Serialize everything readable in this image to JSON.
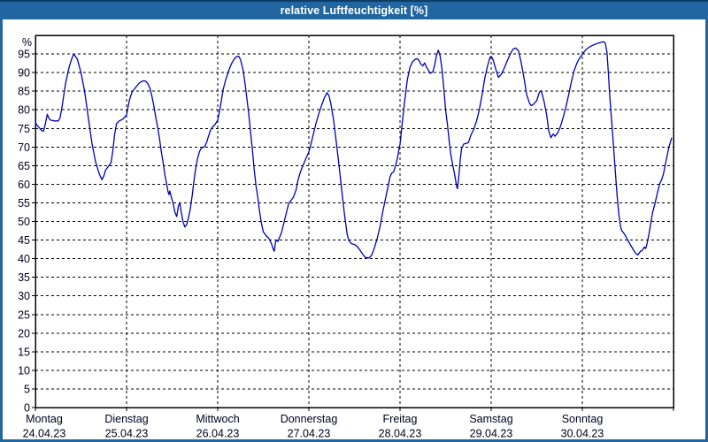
{
  "window": {
    "title": "relative Luftfeuchtigkeit [%]"
  },
  "colors": {
    "titlebar_bg": "#2166a0",
    "titlebar_top_edge": "#0e3c64",
    "titlebar_text": "#ffffff",
    "window_border": "#2166a0",
    "content_bg": "#ffffff",
    "plot_frame": "#000000",
    "gridline": "#000000",
    "axis_text": "#00001e",
    "series_line": "#0000b4"
  },
  "chart_data": {
    "type": "line",
    "title": "relative Luftfeuchtigkeit [%]",
    "ylabel": "%",
    "xlabel": "",
    "ylim": [
      0,
      100
    ],
    "grid": true,
    "legend_position": "none",
    "yticks": [
      0,
      5,
      10,
      15,
      20,
      25,
      30,
      35,
      40,
      45,
      50,
      55,
      60,
      65,
      70,
      75,
      80,
      85,
      90,
      95
    ],
    "x_days": [
      {
        "name": "Montag",
        "date": "24.04.23"
      },
      {
        "name": "Dienstag",
        "date": "25.04.23"
      },
      {
        "name": "Mittwoch",
        "date": "26.04.23"
      },
      {
        "name": "Donnerstag",
        "date": "27.04.23"
      },
      {
        "name": "Freitag",
        "date": "28.04.23"
      },
      {
        "name": "Samstag",
        "date": "29.04.23"
      },
      {
        "name": "Sonntag",
        "date": "30.04.23"
      }
    ],
    "x_unit": "days_from_monday_midnight",
    "series": [
      {
        "name": "relative Luftfeuchtigkeit [%]",
        "color": "#0000b4",
        "points": [
          [
            0.0,
            76.5
          ],
          [
            0.02,
            75.8
          ],
          [
            0.05,
            75.0
          ],
          [
            0.07,
            74.4
          ],
          [
            0.09,
            74.3
          ],
          [
            0.11,
            76.3
          ],
          [
            0.13,
            78.8
          ],
          [
            0.15,
            77.6
          ],
          [
            0.17,
            77.2
          ],
          [
            0.21,
            77.0
          ],
          [
            0.25,
            77.0
          ],
          [
            0.27,
            77.8
          ],
          [
            0.29,
            80.5
          ],
          [
            0.33,
            87.0
          ],
          [
            0.37,
            91.5
          ],
          [
            0.4,
            93.8
          ],
          [
            0.42,
            95.0
          ],
          [
            0.46,
            93.6
          ],
          [
            0.5,
            90.0
          ],
          [
            0.54,
            85.0
          ],
          [
            0.58,
            78.0
          ],
          [
            0.62,
            71.0
          ],
          [
            0.66,
            66.0
          ],
          [
            0.7,
            62.8
          ],
          [
            0.73,
            61.2
          ],
          [
            0.75,
            62.2
          ],
          [
            0.77,
            63.8
          ],
          [
            0.8,
            64.8
          ],
          [
            0.83,
            65.8
          ],
          [
            0.85,
            69.0
          ],
          [
            0.87,
            73.5
          ],
          [
            0.89,
            76.3
          ],
          [
            0.92,
            77.0
          ],
          [
            0.96,
            77.5
          ],
          [
            1.0,
            78.6
          ],
          [
            1.03,
            82.5
          ],
          [
            1.06,
            84.8
          ],
          [
            1.1,
            86.0
          ],
          [
            1.14,
            87.2
          ],
          [
            1.18,
            87.8
          ],
          [
            1.21,
            87.7
          ],
          [
            1.24,
            86.8
          ],
          [
            1.26,
            85.5
          ],
          [
            1.28,
            83.5
          ],
          [
            1.3,
            81.0
          ],
          [
            1.32,
            78.0
          ],
          [
            1.34,
            75.5
          ],
          [
            1.36,
            72.5
          ],
          [
            1.38,
            69.0
          ],
          [
            1.4,
            66.0
          ],
          [
            1.42,
            62.5
          ],
          [
            1.44,
            60.0
          ],
          [
            1.455,
            58.0
          ],
          [
            1.465,
            57.2
          ],
          [
            1.475,
            58.2
          ],
          [
            1.49,
            56.6
          ],
          [
            1.51,
            55.0
          ],
          [
            1.53,
            52.5
          ],
          [
            1.55,
            51.3
          ],
          [
            1.57,
            54.3
          ],
          [
            1.585,
            54.9
          ],
          [
            1.6,
            52.5
          ],
          [
            1.62,
            49.8
          ],
          [
            1.64,
            48.5
          ],
          [
            1.66,
            49.2
          ],
          [
            1.68,
            51.0
          ],
          [
            1.7,
            53.5
          ],
          [
            1.72,
            57.0
          ],
          [
            1.74,
            61.0
          ],
          [
            1.76,
            64.5
          ],
          [
            1.78,
            67.0
          ],
          [
            1.8,
            68.8
          ],
          [
            1.82,
            69.7
          ],
          [
            1.86,
            70.2
          ],
          [
            1.88,
            71.3
          ],
          [
            1.9,
            73.0
          ],
          [
            1.92,
            74.5
          ],
          [
            1.94,
            75.3
          ],
          [
            1.97,
            76.0
          ],
          [
            2.0,
            77.2
          ],
          [
            2.03,
            81.0
          ],
          [
            2.06,
            85.5
          ],
          [
            2.09,
            88.3
          ],
          [
            2.12,
            90.5
          ],
          [
            2.15,
            92.3
          ],
          [
            2.18,
            93.6
          ],
          [
            2.21,
            94.3
          ],
          [
            2.23,
            94.4
          ],
          [
            2.25,
            93.5
          ],
          [
            2.28,
            90.5
          ],
          [
            2.3,
            87.0
          ],
          [
            2.32,
            83.0
          ],
          [
            2.34,
            79.0
          ],
          [
            2.36,
            74.0
          ],
          [
            2.38,
            69.5
          ],
          [
            2.4,
            64.0
          ],
          [
            2.42,
            59.5
          ],
          [
            2.44,
            56.5
          ],
          [
            2.46,
            52.5
          ],
          [
            2.48,
            49.5
          ],
          [
            2.5,
            47.2
          ],
          [
            2.53,
            46.2
          ],
          [
            2.56,
            45.5
          ],
          [
            2.59,
            44.0
          ],
          [
            2.61,
            42.5
          ],
          [
            2.62,
            42.0
          ],
          [
            2.635,
            44.6
          ],
          [
            2.65,
            45.0
          ],
          [
            2.66,
            44.6
          ],
          [
            2.67,
            45.2
          ],
          [
            2.7,
            47.0
          ],
          [
            2.73,
            50.0
          ],
          [
            2.76,
            53.0
          ],
          [
            2.78,
            54.9
          ],
          [
            2.8,
            55.5
          ],
          [
            2.83,
            56.5
          ],
          [
            2.86,
            58.5
          ],
          [
            2.88,
            61.0
          ],
          [
            2.91,
            63.5
          ],
          [
            2.94,
            65.3
          ],
          [
            2.97,
            67.0
          ],
          [
            3.0,
            68.7
          ],
          [
            3.02,
            70.5
          ],
          [
            3.05,
            73.5
          ],
          [
            3.08,
            76.5
          ],
          [
            3.11,
            79.0
          ],
          [
            3.14,
            81.2
          ],
          [
            3.17,
            83.2
          ],
          [
            3.2,
            84.6
          ],
          [
            3.22,
            83.8
          ],
          [
            3.24,
            81.8
          ],
          [
            3.27,
            77.5
          ],
          [
            3.3,
            71.5
          ],
          [
            3.33,
            65.2
          ],
          [
            3.36,
            58.5
          ],
          [
            3.39,
            52.0
          ],
          [
            3.42,
            46.5
          ],
          [
            3.44,
            44.8
          ],
          [
            3.47,
            44.0
          ],
          [
            3.5,
            43.8
          ],
          [
            3.53,
            43.3
          ],
          [
            3.56,
            42.3
          ],
          [
            3.59,
            41.2
          ],
          [
            3.62,
            40.3
          ],
          [
            3.66,
            40.2
          ],
          [
            3.69,
            41.0
          ],
          [
            3.72,
            43.0
          ],
          [
            3.75,
            45.5
          ],
          [
            3.78,
            48.5
          ],
          [
            3.81,
            52.5
          ],
          [
            3.84,
            56.0
          ],
          [
            3.87,
            59.5
          ],
          [
            3.89,
            62.0
          ],
          [
            3.91,
            63.0
          ],
          [
            3.93,
            63.3
          ],
          [
            3.95,
            65.0
          ],
          [
            3.97,
            66.8
          ],
          [
            3.985,
            69.0
          ],
          [
            4.0,
            70.7
          ],
          [
            4.02,
            75.5
          ],
          [
            4.05,
            82.0
          ],
          [
            4.08,
            88.0
          ],
          [
            4.11,
            91.5
          ],
          [
            4.14,
            93.0
          ],
          [
            4.17,
            93.6
          ],
          [
            4.19,
            93.7
          ],
          [
            4.21,
            93.2
          ],
          [
            4.23,
            92.2
          ],
          [
            4.25,
            91.8
          ],
          [
            4.27,
            92.6
          ],
          [
            4.29,
            91.5
          ],
          [
            4.31,
            90.7
          ],
          [
            4.33,
            89.8
          ],
          [
            4.36,
            90.2
          ],
          [
            4.38,
            92.0
          ],
          [
            4.4,
            94.6
          ],
          [
            4.42,
            96.0
          ],
          [
            4.44,
            94.5
          ],
          [
            4.46,
            91.0
          ],
          [
            4.48,
            86.0
          ],
          [
            4.5,
            80.0
          ],
          [
            4.52,
            76.0
          ],
          [
            4.54,
            71.5
          ],
          [
            4.56,
            67.5
          ],
          [
            4.58,
            65.0
          ],
          [
            4.6,
            62.5
          ],
          [
            4.62,
            59.5
          ],
          [
            4.63,
            58.8
          ],
          [
            4.645,
            62.0
          ],
          [
            4.66,
            66.5
          ],
          [
            4.675,
            69.5
          ],
          [
            4.7,
            70.8
          ],
          [
            4.73,
            71.0
          ],
          [
            4.75,
            71.2
          ],
          [
            4.78,
            73.3
          ],
          [
            4.81,
            74.8
          ],
          [
            4.84,
            77.0
          ],
          [
            4.87,
            80.0
          ],
          [
            4.9,
            84.0
          ],
          [
            4.93,
            88.5
          ],
          [
            4.96,
            91.8
          ],
          [
            4.985,
            94.0
          ],
          [
            5.0,
            94.4
          ],
          [
            5.02,
            93.5
          ],
          [
            5.05,
            91.0
          ],
          [
            5.08,
            88.7
          ],
          [
            5.11,
            89.5
          ],
          [
            5.14,
            91.0
          ],
          [
            5.17,
            92.8
          ],
          [
            5.21,
            95.0
          ],
          [
            5.24,
            96.3
          ],
          [
            5.27,
            96.6
          ],
          [
            5.3,
            95.8
          ],
          [
            5.33,
            92.6
          ],
          [
            5.36,
            88.5
          ],
          [
            5.39,
            84.0
          ],
          [
            5.42,
            81.8
          ],
          [
            5.44,
            81.1
          ],
          [
            5.47,
            81.6
          ],
          [
            5.5,
            82.5
          ],
          [
            5.53,
            84.8
          ],
          [
            5.55,
            85.1
          ],
          [
            5.58,
            82.3
          ],
          [
            5.61,
            78.5
          ],
          [
            5.63,
            74.5
          ],
          [
            5.655,
            72.5
          ],
          [
            5.68,
            73.5
          ],
          [
            5.7,
            72.9
          ],
          [
            5.73,
            73.8
          ],
          [
            5.76,
            75.5
          ],
          [
            5.79,
            78.0
          ],
          [
            5.82,
            80.8
          ],
          [
            5.85,
            84.0
          ],
          [
            5.88,
            87.5
          ],
          [
            5.91,
            90.5
          ],
          [
            5.94,
            92.5
          ],
          [
            5.97,
            93.9
          ],
          [
            6.0,
            94.9
          ],
          [
            6.04,
            96.2
          ],
          [
            6.08,
            96.9
          ],
          [
            6.12,
            97.4
          ],
          [
            6.16,
            97.8
          ],
          [
            6.2,
            98.1
          ],
          [
            6.23,
            98.3
          ],
          [
            6.25,
            98.0
          ],
          [
            6.27,
            95.5
          ],
          [
            6.285,
            90.0
          ],
          [
            6.3,
            84.0
          ],
          [
            6.32,
            77.5
          ],
          [
            6.34,
            71.0
          ],
          [
            6.36,
            64.0
          ],
          [
            6.38,
            57.5
          ],
          [
            6.4,
            52.0
          ],
          [
            6.42,
            48.5
          ],
          [
            6.435,
            47.4
          ],
          [
            6.45,
            47.0
          ],
          [
            6.47,
            46.3
          ],
          [
            6.5,
            44.9
          ],
          [
            6.53,
            43.6
          ],
          [
            6.56,
            42.4
          ],
          [
            6.585,
            41.4
          ],
          [
            6.61,
            41.0
          ],
          [
            6.635,
            41.9
          ],
          [
            6.66,
            42.3
          ],
          [
            6.68,
            43.1
          ],
          [
            6.695,
            42.7
          ],
          [
            6.71,
            44.0
          ],
          [
            6.73,
            46.5
          ],
          [
            6.75,
            49.5
          ],
          [
            6.77,
            52.3
          ],
          [
            6.79,
            54.2
          ],
          [
            6.82,
            57.3
          ],
          [
            6.85,
            60.2
          ],
          [
            6.87,
            61.2
          ],
          [
            6.89,
            62.8
          ],
          [
            6.92,
            66.5
          ],
          [
            6.95,
            70.0
          ],
          [
            6.98,
            72.4
          ]
        ]
      }
    ]
  }
}
